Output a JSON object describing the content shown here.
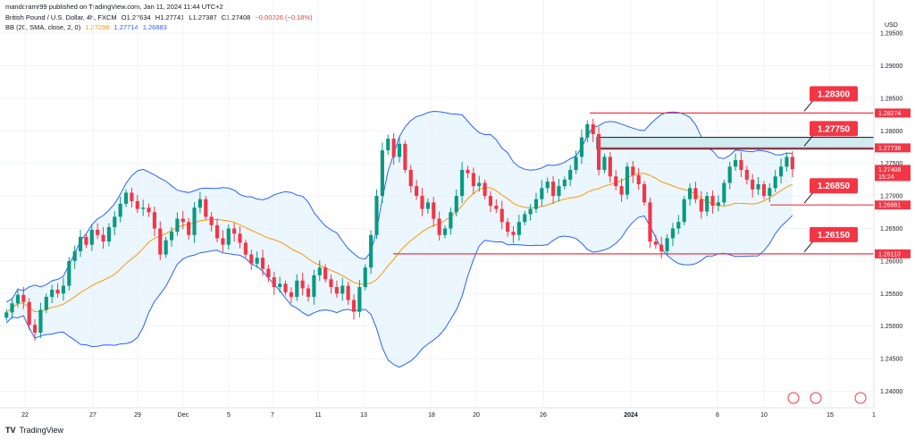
{
  "publisher": "mandoramr99 published on TradingView.com, Jan 11, 2024 11:44 UTC+2",
  "symbol": {
    "title": "British Pound / U.S. Dollar, 4h, FXCM",
    "o": "O1.27634",
    "h": "H1.27741",
    "l": "L1.27387",
    "c": "C1.27408",
    "chg": "−0.00226 (−0.18%)"
  },
  "indicator": {
    "label": "BB (20, SMA, close, 2, 0)",
    "basis": "1.27298",
    "upper": "1.27714",
    "lower": "1.26883"
  },
  "footer": {
    "brand": "TradingView",
    "logo": "TV"
  },
  "colors": {
    "up": "#089981",
    "down": "#f23645",
    "basis": "#ff9800",
    "band": "#2962ff",
    "fill": "#e3f2fd",
    "level": "#f23645",
    "zone": "#d1ecf1",
    "zoneBorder": "#131722"
  },
  "chart_data": {
    "type": "candlestick",
    "currency": "USD",
    "y_ticks": [
      "1.29500",
      "1.29000",
      "1.28500",
      "1.28000",
      "1.27500",
      "1.27000",
      "1.26500",
      "1.26000",
      "1.25500",
      "1.25000",
      "1.24500",
      "1.24000"
    ],
    "ylim": [
      1.238,
      1.299
    ],
    "x_ticks": [
      "22",
      "27",
      "29",
      "Dec",
      "5",
      "7",
      "11",
      "13",
      "18",
      "20",
      "26",
      "2024",
      "8",
      "10",
      "15",
      "1"
    ],
    "price_badges": [
      {
        "price": 1.28274,
        "label": "1.28274",
        "color": "#f23645"
      },
      {
        "price": 1.27738,
        "label": "1.27738",
        "color": "#f23645"
      },
      {
        "price": 1.27408,
        "label": "1.27408",
        "sub": "15:24",
        "color": "#f23645"
      },
      {
        "price": 1.26861,
        "label": "1.26861",
        "color": "#f23645"
      },
      {
        "price": 1.2611,
        "label": "1.26110",
        "color": "#f23645"
      }
    ],
    "levels": [
      {
        "price": 1.28274,
        "label": "1.28300"
      },
      {
        "price": 1.27738,
        "label": "1.27750"
      },
      {
        "price": 1.26861,
        "label": "1.26850"
      },
      {
        "price": 1.2611,
        "label": "1.26150"
      }
    ],
    "zone": {
      "top": 1.279,
      "bottom": 1.2772
    },
    "closes": [
      1.2521,
      1.2535,
      1.2548,
      1.2537,
      1.2502,
      1.249,
      1.2525,
      1.2545,
      1.2556,
      1.255,
      1.2562,
      1.26,
      1.2615,
      1.2637,
      1.2625,
      1.2648,
      1.264,
      1.263,
      1.2652,
      1.2668,
      1.2688,
      1.2705,
      1.2692,
      1.268,
      1.2682,
      1.2675,
      1.265,
      1.261,
      1.2632,
      1.2645,
      1.2665,
      1.266,
      1.264,
      1.2682,
      1.2695,
      1.2668,
      1.2655,
      1.2635,
      1.2625,
      1.265,
      1.2642,
      1.2628,
      1.261,
      1.2596,
      1.2605,
      1.2588,
      1.2575,
      1.256,
      1.2565,
      1.2552,
      1.2545,
      1.257,
      1.2558,
      1.2545,
      1.2578,
      1.259,
      1.2572,
      1.256,
      1.255,
      1.2562,
      1.254,
      1.2522,
      1.256,
      1.259,
      1.264,
      1.27,
      1.277,
      1.2788,
      1.276,
      1.278,
      1.274,
      1.2715,
      1.27,
      1.268,
      1.269,
      1.2665,
      1.264,
      1.265,
      1.2675,
      1.27,
      1.274,
      1.2735,
      1.2715,
      1.272,
      1.27,
      1.2685,
      1.268,
      1.266,
      1.2645,
      1.264,
      1.266,
      1.2672,
      1.268,
      1.2695,
      1.2712,
      1.2722,
      1.27,
      1.2715,
      1.2725,
      1.274,
      1.276,
      1.279,
      1.281,
      1.2795,
      1.274,
      1.276,
      1.273,
      1.2715,
      1.2702,
      1.2745,
      1.2732,
      1.2718,
      1.269,
      1.263,
      1.2625,
      1.2615,
      1.2635,
      1.265,
      1.266,
      1.2695,
      1.2712,
      1.2695,
      1.2676,
      1.27,
      1.2685,
      1.269,
      1.272,
      1.2745,
      1.2755,
      1.274,
      1.2725,
      1.271,
      1.2718,
      1.27,
      1.2712,
      1.273,
      1.2745,
      1.276,
      1.2741
    ]
  }
}
